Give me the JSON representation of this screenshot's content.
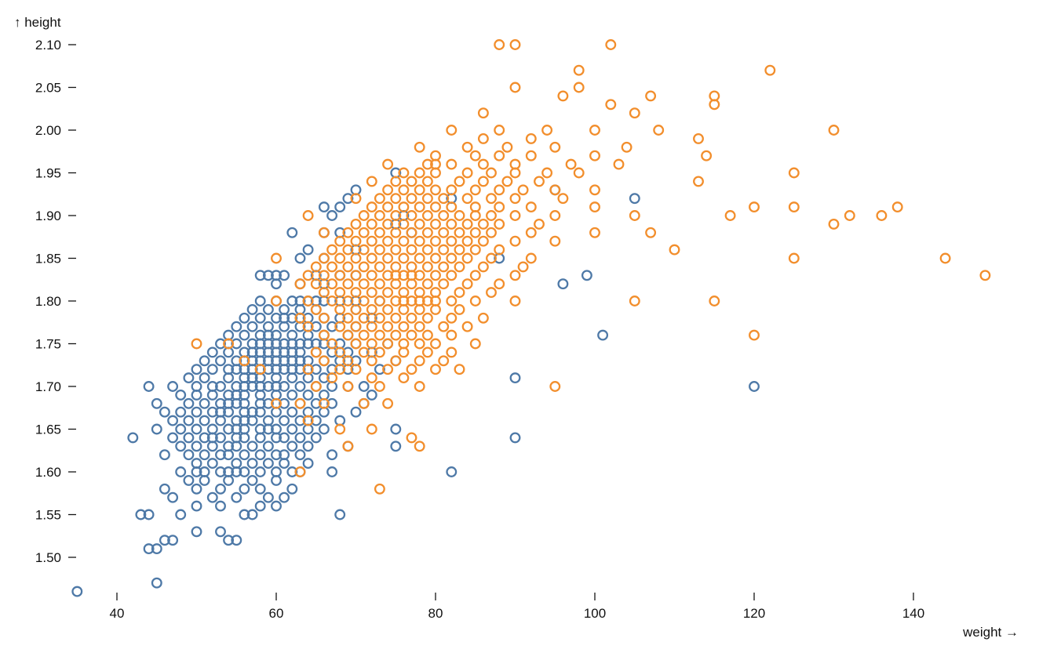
{
  "chart_data": {
    "type": "scatter",
    "title": "",
    "xlabel": "weight",
    "ylabel": "height",
    "xlabel_display": "weight →",
    "ylabel_display": "↑ height",
    "grid": false,
    "legend_position": "none",
    "marker": "open-circle",
    "x_ticks": [
      40,
      60,
      80,
      100,
      120,
      140
    ],
    "y_ticks": [
      1.5,
      1.55,
      1.6,
      1.65,
      1.7,
      1.75,
      1.8,
      1.85,
      1.9,
      1.95,
      2.0,
      2.05,
      2.1
    ],
    "xlim": [
      35,
      150
    ],
    "ylim": [
      1.45,
      2.12
    ],
    "x_unit": "kg",
    "y_unit": "m",
    "series_format": "rows maps height (m) to list of weights (kg); each weight is one data point",
    "series": [
      {
        "name": "series-blue",
        "color": "#4e79a7",
        "rows": {
          "1.46": [
            35
          ],
          "1.47": [
            45
          ],
          "1.51": [
            44,
            45
          ],
          "1.52": [
            46,
            47,
            54,
            55
          ],
          "1.53": [
            50,
            53
          ],
          "1.55": [
            43,
            44,
            48,
            56,
            57,
            68
          ],
          "1.56": [
            50,
            53,
            58,
            60
          ],
          "1.57": [
            47,
            52,
            55,
            59,
            61
          ],
          "1.58": [
            46,
            50,
            53,
            56,
            58,
            62
          ],
          "1.59": [
            49,
            51,
            54,
            57,
            60
          ],
          "1.60": [
            48,
            50,
            51,
            53,
            54,
            55,
            56,
            58,
            60,
            62,
            63,
            67,
            82
          ],
          "1.61": [
            50,
            52,
            55,
            57,
            59,
            61,
            64
          ],
          "1.62": [
            46,
            49,
            51,
            53,
            54,
            56,
            58,
            60,
            61,
            63,
            67
          ],
          "1.63": [
            48,
            50,
            52,
            54,
            55,
            57,
            59,
            62,
            64,
            69,
            75
          ],
          "1.64": [
            42,
            47,
            49,
            51,
            52,
            53,
            55,
            56,
            58,
            60,
            61,
            63,
            65,
            90
          ],
          "1.65": [
            45,
            48,
            50,
            52,
            54,
            55,
            56,
            58,
            59,
            60,
            62,
            64,
            66,
            75
          ],
          "1.66": [
            47,
            49,
            51,
            53,
            55,
            56,
            57,
            59,
            61,
            63,
            65,
            68
          ],
          "1.67": [
            46,
            48,
            50,
            52,
            53,
            54,
            56,
            57,
            58,
            60,
            62,
            64,
            66,
            70
          ],
          "1.68": [
            45,
            49,
            51,
            53,
            54,
            55,
            56,
            58,
            59,
            61,
            63,
            65,
            67,
            71
          ],
          "1.69": [
            48,
            50,
            52,
            54,
            55,
            56,
            58,
            60,
            62,
            64,
            66,
            72
          ],
          "1.70": [
            44,
            47,
            50,
            52,
            53,
            55,
            56,
            57,
            58,
            59,
            60,
            61,
            63,
            65,
            67,
            69,
            71,
            120
          ],
          "1.71": [
            49,
            51,
            54,
            56,
            57,
            58,
            60,
            62,
            64,
            66,
            90
          ],
          "1.72": [
            50,
            52,
            54,
            55,
            56,
            57,
            58,
            59,
            60,
            61,
            62,
            63,
            64,
            65,
            67,
            69,
            73
          ],
          "1.73": [
            51,
            53,
            55,
            56,
            57,
            58,
            59,
            60,
            61,
            62,
            63,
            64,
            66,
            68,
            70,
            75
          ],
          "1.74": [
            52,
            54,
            56,
            57,
            58,
            59,
            60,
            61,
            62,
            63,
            65,
            67,
            69,
            72
          ],
          "1.75": [
            53,
            55,
            57,
            58,
            59,
            60,
            61,
            62,
            63,
            64,
            65,
            66,
            68,
            70,
            74
          ],
          "1.76": [
            54,
            56,
            58,
            59,
            60,
            62,
            64,
            66,
            69,
            101
          ],
          "1.77": [
            55,
            57,
            59,
            61,
            63,
            65,
            67,
            70
          ],
          "1.78": [
            56,
            58,
            60,
            61,
            62,
            63,
            64,
            66,
            68,
            72
          ],
          "1.79": [
            57,
            59,
            61,
            63,
            65,
            70
          ],
          "1.80": [
            58,
            60,
            62,
            63,
            64,
            65,
            66,
            68,
            70,
            73
          ],
          "1.82": [
            60,
            63,
            66,
            96
          ],
          "1.83": [
            58,
            59,
            60,
            61,
            65,
            68,
            70,
            99
          ],
          "1.85": [
            63,
            66,
            88
          ],
          "1.86": [
            64,
            70
          ],
          "1.88": [
            62,
            66,
            68,
            77
          ],
          "1.89": [
            75
          ],
          "1.90": [
            67,
            76
          ],
          "1.91": [
            66,
            68
          ],
          "1.92": [
            69,
            82,
            105
          ],
          "1.93": [
            70,
            95
          ],
          "1.95": [
            75
          ]
        }
      },
      {
        "name": "series-orange",
        "color": "#f28e2c",
        "rows": {
          "1.58": [
            73
          ],
          "1.60": [
            63
          ],
          "1.63": [
            69,
            78
          ],
          "1.64": [
            77
          ],
          "1.65": [
            68,
            72
          ],
          "1.66": [
            64
          ],
          "1.68": [
            60,
            63,
            66,
            71,
            74
          ],
          "1.70": [
            65,
            69,
            73,
            78,
            95
          ],
          "1.71": [
            67,
            72,
            76
          ],
          "1.72": [
            58,
            64,
            68,
            70,
            74,
            77,
            80,
            83
          ],
          "1.73": [
            56,
            66,
            69,
            72,
            75,
            78,
            81
          ],
          "1.74": [
            65,
            68,
            71,
            73,
            76,
            79,
            82
          ],
          "1.75": [
            50,
            54,
            67,
            70,
            72,
            74,
            76,
            78,
            80,
            85
          ],
          "1.76": [
            66,
            69,
            71,
            73,
            75,
            77,
            79,
            82,
            120
          ],
          "1.77": [
            64,
            68,
            70,
            72,
            74,
            76,
            78,
            81,
            84
          ],
          "1.78": [
            63,
            66,
            69,
            71,
            73,
            75,
            77,
            79,
            82,
            86
          ],
          "1.79": [
            65,
            68,
            70,
            72,
            74,
            76,
            78,
            80,
            83
          ],
          "1.80": [
            60,
            64,
            67,
            69,
            71,
            73,
            75,
            76,
            77,
            78,
            79,
            80,
            82,
            85,
            90,
            105,
            115
          ],
          "1.81": [
            66,
            68,
            70,
            72,
            74,
            76,
            78,
            80,
            83,
            87
          ],
          "1.82": [
            63,
            65,
            67,
            69,
            71,
            73,
            75,
            77,
            79,
            81,
            84,
            88
          ],
          "1.83": [
            64,
            66,
            68,
            70,
            72,
            74,
            75,
            76,
            77,
            78,
            80,
            82,
            85,
            90,
            149
          ],
          "1.84": [
            65,
            67,
            69,
            71,
            73,
            75,
            77,
            79,
            81,
            83,
            86,
            91
          ],
          "1.85": [
            60,
            66,
            68,
            70,
            72,
            74,
            76,
            78,
            80,
            82,
            84,
            87,
            92,
            125,
            144
          ],
          "1.86": [
            67,
            69,
            71,
            73,
            75,
            77,
            79,
            81,
            83,
            85,
            88,
            110
          ],
          "1.87": [
            68,
            70,
            72,
            74,
            76,
            78,
            80,
            82,
            84,
            86,
            90,
            95
          ],
          "1.88": [
            66,
            69,
            71,
            73,
            75,
            77,
            79,
            81,
            83,
            85,
            87,
            92,
            100,
            107
          ],
          "1.89": [
            70,
            72,
            74,
            76,
            78,
            80,
            82,
            84,
            86,
            88,
            93,
            130
          ],
          "1.90": [
            64,
            71,
            73,
            75,
            77,
            79,
            81,
            83,
            85,
            87,
            90,
            95,
            105,
            117,
            132,
            136
          ],
          "1.91": [
            72,
            74,
            76,
            78,
            80,
            82,
            85,
            88,
            92,
            100,
            120,
            125,
            138
          ],
          "1.92": [
            70,
            73,
            75,
            77,
            79,
            81,
            84,
            87,
            90,
            96
          ],
          "1.93": [
            74,
            76,
            78,
            80,
            82,
            85,
            88,
            91,
            95,
            100
          ],
          "1.94": [
            72,
            75,
            77,
            79,
            83,
            86,
            89,
            93,
            113
          ],
          "1.95": [
            76,
            78,
            80,
            84,
            87,
            90,
            94,
            98,
            125
          ],
          "1.96": [
            74,
            79,
            80,
            82,
            86,
            90,
            97,
            103
          ],
          "1.97": [
            80,
            85,
            88,
            92,
            100,
            114
          ],
          "1.98": [
            78,
            84,
            89,
            95,
            104
          ],
          "1.99": [
            86,
            92,
            113
          ],
          "2.00": [
            82,
            88,
            94,
            100,
            108,
            130
          ],
          "2.02": [
            86,
            105
          ],
          "2.03": [
            102,
            115
          ],
          "2.04": [
            96,
            107,
            115
          ],
          "2.05": [
            90,
            98
          ],
          "2.07": [
            98,
            122
          ],
          "2.10": [
            88,
            90,
            102
          ]
        }
      }
    ]
  }
}
